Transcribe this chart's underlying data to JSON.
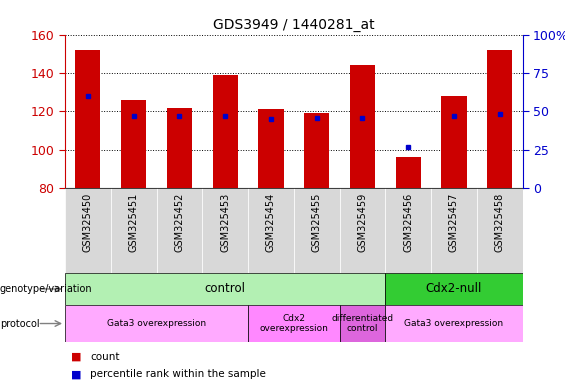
{
  "title": "GDS3949 / 1440281_at",
  "samples": [
    "GSM325450",
    "GSM325451",
    "GSM325452",
    "GSM325453",
    "GSM325454",
    "GSM325455",
    "GSM325459",
    "GSM325456",
    "GSM325457",
    "GSM325458"
  ],
  "counts": [
    152,
    126,
    122,
    139,
    121,
    119,
    144,
    96,
    128,
    152
  ],
  "percentile_ranks": [
    60,
    47,
    47,
    47,
    45,
    46,
    46,
    27,
    47,
    48
  ],
  "ymin": 80,
  "ymax": 160,
  "yticks": [
    80,
    100,
    120,
    140,
    160
  ],
  "y2ticks": [
    0,
    25,
    50,
    75,
    100
  ],
  "bar_color": "#cc0000",
  "dot_color": "#0000cc",
  "bar_width": 0.55,
  "genotype_groups": [
    {
      "label": "control",
      "start": 0,
      "end": 7,
      "color": "#b3f0b3"
    },
    {
      "label": "Cdx2-null",
      "start": 7,
      "end": 10,
      "color": "#33cc33"
    }
  ],
  "protocol_groups": [
    {
      "label": "Gata3 overexpression",
      "start": 0,
      "end": 4,
      "color": "#ffaaff"
    },
    {
      "label": "Cdx2\noverexpression",
      "start": 4,
      "end": 6,
      "color": "#ff88ff"
    },
    {
      "label": "differentiated\ncontrol",
      "start": 6,
      "end": 7,
      "color": "#dd66dd"
    },
    {
      "label": "Gata3 overexpression",
      "start": 7,
      "end": 10,
      "color": "#ffaaff"
    }
  ],
  "legend_count_color": "#cc0000",
  "legend_dot_color": "#0000cc",
  "tick_label_color": "#cc0000",
  "right_tick_color": "#0000cc",
  "right_y_labels": [
    "0",
    "25",
    "50",
    "75",
    "100%"
  ]
}
